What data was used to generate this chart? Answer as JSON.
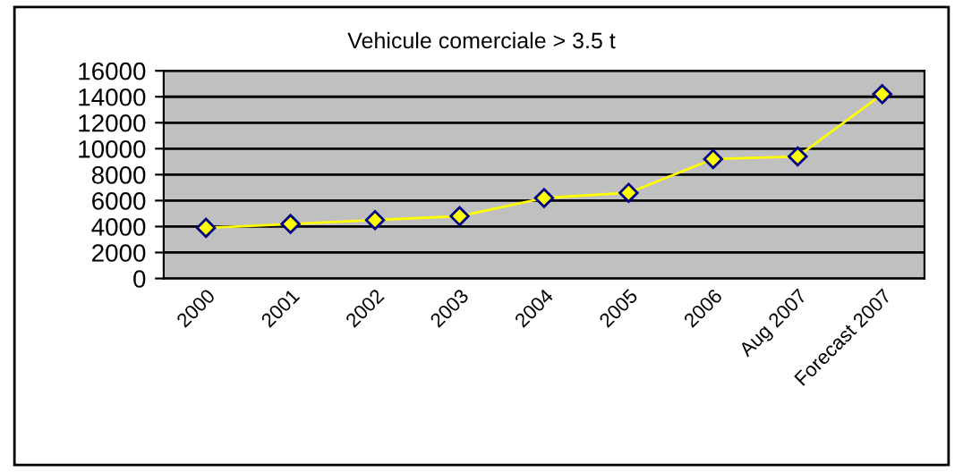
{
  "chart_data": {
    "type": "line",
    "title": "Vehicule comerciale > 3.5 t",
    "categories": [
      "2000",
      "2001",
      "2002",
      "2003",
      "2004",
      "2005",
      "2006",
      "Aug 2007",
      "Forecast 2007"
    ],
    "series": [
      {
        "color": "#ffff00",
        "values": [
          3900,
          4200,
          4500,
          4800,
          6200,
          6600,
          9200,
          9400,
          14200
        ]
      }
    ],
    "ylim": [
      0,
      16000
    ],
    "yticks": [
      0,
      2000,
      4000,
      6000,
      8000,
      10000,
      12000,
      14000,
      16000
    ],
    "grid": "y",
    "marker": "diamond",
    "line_style": "solid",
    "legend": false
  }
}
